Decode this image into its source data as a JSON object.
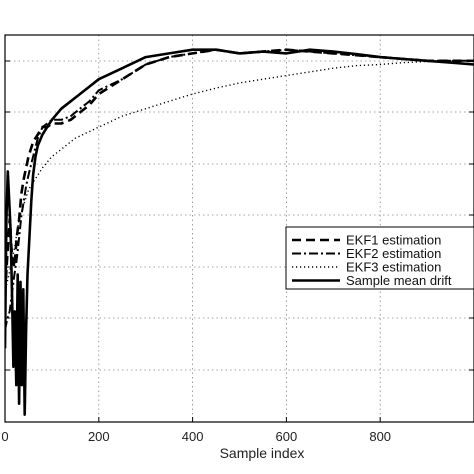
{
  "chart_data": {
    "type": "line",
    "xlabel": "Sample index",
    "ylabel": "",
    "xlim": [
      0,
      1000
    ],
    "ylim": [
      0,
      1.05
    ],
    "x_ticks": [
      0,
      200,
      400,
      600,
      800
    ],
    "grid": true,
    "legend_position": "right",
    "series": [
      {
        "name": "EKF1 estimation",
        "style": "dashed",
        "x": [
          0,
          5,
          10,
          15,
          20,
          25,
          30,
          35,
          40,
          45,
          50,
          60,
          70,
          80,
          90,
          100,
          120,
          140,
          160,
          180,
          200,
          250,
          300,
          350,
          400,
          450,
          500,
          600,
          700,
          800,
          900,
          1000
        ],
        "y": [
          0.35,
          0.45,
          0.55,
          0.45,
          0.42,
          0.5,
          0.55,
          0.62,
          0.66,
          0.69,
          0.72,
          0.76,
          0.78,
          0.8,
          0.8,
          0.81,
          0.81,
          0.82,
          0.84,
          0.86,
          0.89,
          0.93,
          0.97,
          0.99,
          1.0,
          1.01,
          1.0,
          1.01,
          1.0,
          0.99,
          0.98,
          0.98
        ]
      },
      {
        "name": "EKF2 estimation",
        "style": "dashdot",
        "x": [
          0,
          5,
          10,
          15,
          20,
          25,
          30,
          35,
          40,
          45,
          50,
          60,
          70,
          80,
          90,
          100,
          120,
          140,
          160,
          180,
          200,
          250,
          300,
          350,
          400,
          450,
          500,
          600,
          700,
          800,
          900,
          1000
        ],
        "y": [
          0.25,
          0.28,
          0.3,
          0.35,
          0.4,
          0.44,
          0.5,
          0.56,
          0.6,
          0.64,
          0.67,
          0.72,
          0.77,
          0.8,
          0.81,
          0.82,
          0.82,
          0.83,
          0.85,
          0.87,
          0.9,
          0.93,
          0.97,
          0.99,
          1.0,
          1.01,
          1.0,
          1.01,
          1.0,
          0.99,
          0.98,
          0.98
        ]
      },
      {
        "name": "EKF3 estimation",
        "style": "dotted",
        "x": [
          0,
          5,
          10,
          15,
          20,
          25,
          30,
          40,
          50,
          60,
          80,
          100,
          120,
          150,
          200,
          250,
          300,
          350,
          400,
          450,
          500,
          550,
          600,
          650,
          700,
          750,
          800,
          850,
          900,
          950,
          1000
        ],
        "y": [
          0.35,
          0.38,
          0.41,
          0.44,
          0.47,
          0.51,
          0.55,
          0.59,
          0.63,
          0.65,
          0.69,
          0.72,
          0.74,
          0.77,
          0.8,
          0.83,
          0.85,
          0.87,
          0.89,
          0.906,
          0.92,
          0.93,
          0.94,
          0.95,
          0.96,
          0.967,
          0.97,
          0.975,
          0.978,
          0.98,
          0.98
        ]
      },
      {
        "name": "Sample mean drift",
        "style": "solid",
        "x": [
          0,
          3,
          6,
          9,
          12,
          15,
          18,
          21,
          24,
          27,
          30,
          33,
          36,
          39,
          42,
          45,
          48,
          52,
          56,
          60,
          65,
          70,
          80,
          90,
          100,
          120,
          140,
          160,
          180,
          200,
          250,
          300,
          350,
          400,
          450,
          500,
          550,
          600,
          650,
          700,
          750,
          800,
          850,
          900,
          950,
          1000
        ],
        "y": [
          0.2,
          0.55,
          0.68,
          0.6,
          0.52,
          0.35,
          0.15,
          0.3,
          0.1,
          0.4,
          0.05,
          0.38,
          0.1,
          0.36,
          0.02,
          0.25,
          0.4,
          0.5,
          0.6,
          0.67,
          0.72,
          0.75,
          0.78,
          0.8,
          0.82,
          0.85,
          0.87,
          0.89,
          0.91,
          0.93,
          0.96,
          0.99,
          1.0,
          1.01,
          1.01,
          1.0,
          1.005,
          1.0,
          1.01,
          1.005,
          0.998,
          0.99,
          0.985,
          0.98,
          0.975,
          0.97
        ]
      }
    ]
  }
}
